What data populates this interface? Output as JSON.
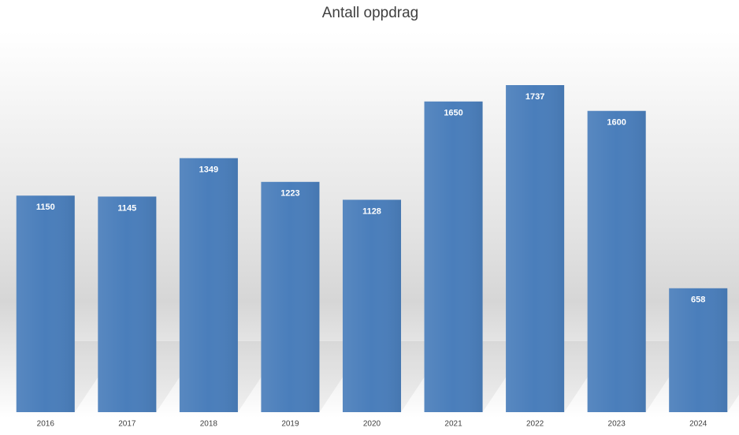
{
  "chart_data": {
    "type": "bar",
    "title": "Antall oppdrag",
    "categories": [
      "2016",
      "2017",
      "2018",
      "2019",
      "2020",
      "2021",
      "2022",
      "2023",
      "2024"
    ],
    "values": [
      1150,
      1145,
      1349,
      1223,
      1128,
      1650,
      1737,
      1600,
      658
    ],
    "color": "#4a7ebb"
  }
}
